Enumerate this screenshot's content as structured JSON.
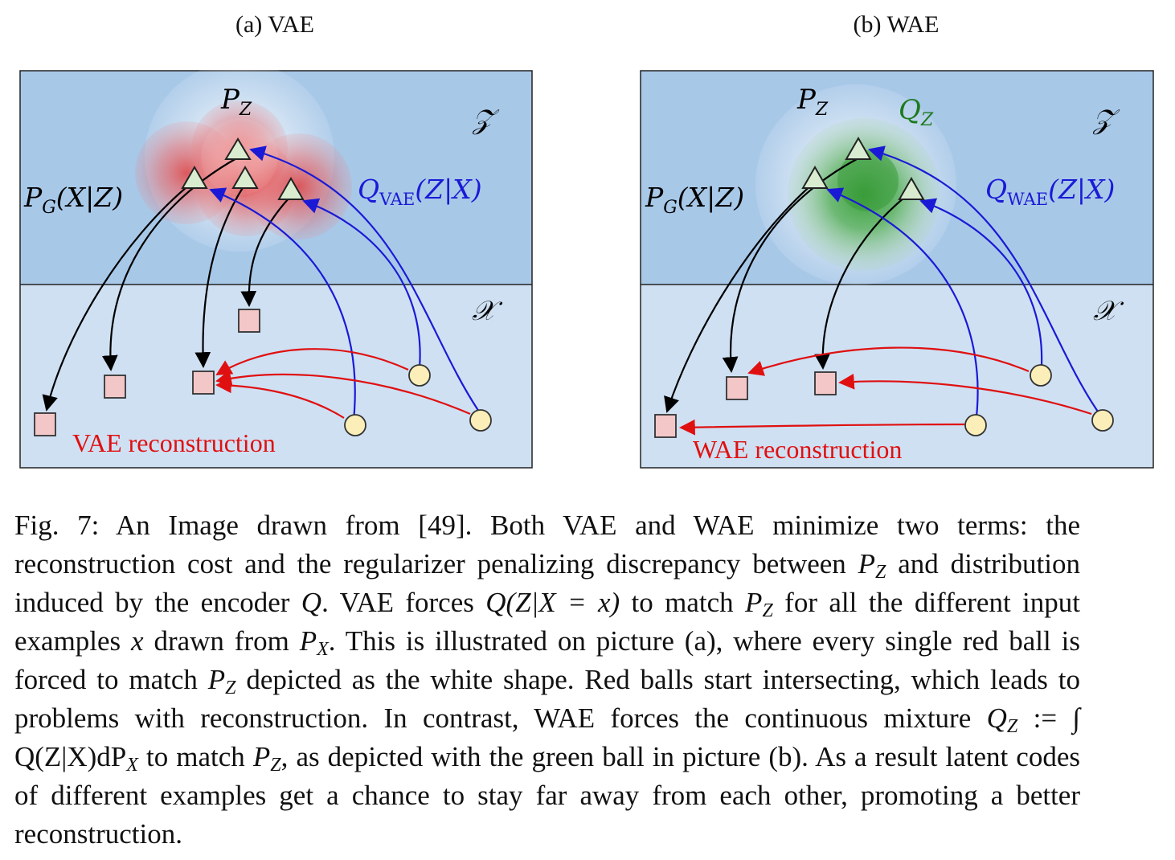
{
  "panels": {
    "a": {
      "title": "(a) VAE",
      "prior_label": "P_Z",
      "latent_space_label": "𝒵",
      "data_space_label": "𝒳",
      "decoder_label": "P_G(X|Z)",
      "encoder_label": "Q_VAE(Z|X)",
      "reconstruction_label": "VAE reconstruction"
    },
    "b": {
      "title": "(b) WAE",
      "prior_label": "P_Z",
      "aggregate_posterior_label": "Q_Z",
      "latent_space_label": "𝒵",
      "data_space_label": "𝒳",
      "decoder_label": "P_G(X|Z)",
      "encoder_label": "Q_WAE(Z|X)",
      "reconstruction_label": "WAE reconstruction"
    }
  },
  "colors": {
    "latent_bg": "#a8c8e8",
    "data_bg": "#cfe0f3",
    "encoder_arrow": "#1a1ad6",
    "decoder_arrow": "#000000",
    "reconstruction_arrow": "#e01010",
    "reconstruction_text": "#e01010",
    "encoder_text": "#1a1ad6",
    "qz_text": "#1e7a1e",
    "latent_code_fill": "#d9ecd0",
    "data_point_fill": "#fbeeb8",
    "reconstruction_fill": "#f3c7c8"
  },
  "caption": {
    "p1": "Fig. 7: An Image drawn from [49]. Both VAE and WAE minimize two terms: the reconstruction cost and the regularizer penalizing discrepancy between ",
    "pz1": "P",
    "p2": " and distribution induced by the encoder ",
    "q1": "Q",
    "p3": ". VAE forces ",
    "qzx": "Q(Z|X = x)",
    "p4": " to match ",
    "pz2": "P",
    "p5": " for all the different input examples ",
    "x1": "x",
    "p6": " drawn from ",
    "px1": "P",
    "p7": ". This is illustrated on picture (a), where every single red ball is forced to match ",
    "pz3": "P",
    "p8": " depicted as the white shape. Red balls start intersecting, which leads to problems with reconstruction. In contrast, WAE forces the continuous mixture ",
    "qz_def": "Q",
    "p9": " := ∫ Q(Z|X)dP",
    "p10": " to match ",
    "pz4": "P",
    "p11": ", as depicted with the green ball in picture (b). As a result latent codes of different examples get a chance to stay far away from each other, promoting a better reconstruction.",
    "sub_z": "Z",
    "sub_x": "X"
  }
}
